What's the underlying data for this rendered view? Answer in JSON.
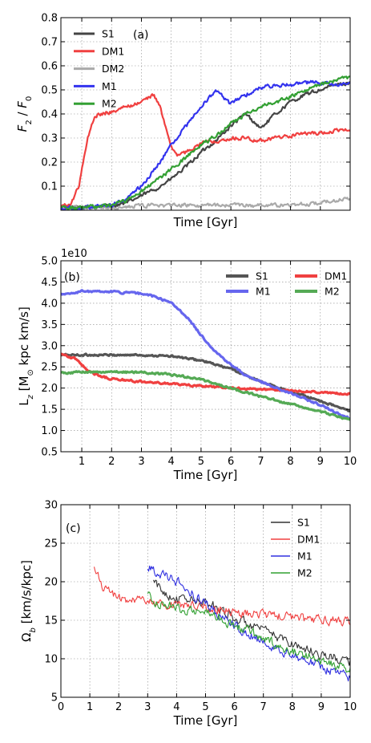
{
  "chart_data": [
    {
      "type": "line",
      "panel_label": "(a)",
      "xlabel": "Time [Gyr]",
      "ylabel": "F_2 / F_0",
      "ylabel_parts": {
        "base": "F",
        "sub1": "2",
        "sep": " / ",
        "base2": "F",
        "sub2": "0"
      },
      "xlim": [
        0.3,
        10
      ],
      "ylim": [
        0,
        0.8
      ],
      "x_ticks_labeled": false,
      "y_ticks": [
        0.1,
        0.2,
        0.3,
        0.4,
        0.5,
        0.6,
        0.7,
        0.8
      ],
      "y_tick_labels": [
        "0.1",
        "0.2",
        "0.3",
        "0.4",
        "0.5",
        "0.6",
        "0.7",
        "0.8"
      ],
      "grid": true,
      "legend_position": "top-left",
      "legend_columns": 1,
      "noise": 0.007,
      "series": [
        {
          "name": "S1",
          "color": "#444444",
          "x": [
            0.3,
            1.0,
            2.0,
            2.5,
            3.0,
            3.5,
            4.0,
            4.5,
            5.0,
            5.5,
            6.0,
            6.5,
            7.0,
            7.5,
            8.0,
            8.5,
            9.0,
            9.5,
            10.0
          ],
          "y": [
            0.01,
            0.01,
            0.02,
            0.03,
            0.06,
            0.09,
            0.13,
            0.18,
            0.24,
            0.29,
            0.35,
            0.4,
            0.34,
            0.4,
            0.45,
            0.48,
            0.5,
            0.52,
            0.53
          ]
        },
        {
          "name": "DM1",
          "color": "#f04040",
          "x": [
            0.3,
            0.6,
            0.9,
            1.2,
            1.4,
            1.6,
            2.0,
            2.5,
            3.0,
            3.4,
            3.6,
            3.8,
            4.0,
            4.2,
            4.5,
            5.0,
            5.5,
            6.0,
            6.5,
            7.0,
            7.5,
            8.0,
            8.5,
            9.0,
            9.5,
            10.0
          ],
          "y": [
            0.02,
            0.02,
            0.1,
            0.3,
            0.38,
            0.4,
            0.41,
            0.43,
            0.45,
            0.48,
            0.44,
            0.35,
            0.26,
            0.23,
            0.24,
            0.28,
            0.29,
            0.3,
            0.3,
            0.29,
            0.3,
            0.31,
            0.32,
            0.32,
            0.33,
            0.33
          ]
        },
        {
          "name": "DM2",
          "color": "#aaaaaa",
          "x": [
            0.3,
            2.0,
            3.0,
            4.0,
            5.0,
            6.0,
            7.0,
            8.0,
            9.0,
            9.5,
            10.0
          ],
          "y": [
            0.01,
            0.01,
            0.02,
            0.02,
            0.02,
            0.02,
            0.02,
            0.02,
            0.03,
            0.04,
            0.05
          ]
        },
        {
          "name": "M1",
          "color": "#3333ee",
          "x": [
            0.3,
            1.0,
            2.0,
            2.5,
            3.0,
            3.5,
            4.0,
            4.5,
            5.0,
            5.5,
            5.8,
            6.0,
            6.5,
            7.0,
            7.5,
            8.0,
            8.5,
            9.0,
            9.5,
            10.0
          ],
          "y": [
            0.01,
            0.01,
            0.02,
            0.05,
            0.1,
            0.18,
            0.27,
            0.35,
            0.43,
            0.5,
            0.46,
            0.44,
            0.48,
            0.51,
            0.52,
            0.52,
            0.53,
            0.53,
            0.52,
            0.52
          ]
        },
        {
          "name": "M2",
          "color": "#33a033",
          "x": [
            0.3,
            1.0,
            2.0,
            2.5,
            3.0,
            3.5,
            4.0,
            4.5,
            5.0,
            5.5,
            6.0,
            6.5,
            7.0,
            7.5,
            8.0,
            8.5,
            9.0,
            9.5,
            10.0
          ],
          "y": [
            0.01,
            0.01,
            0.02,
            0.04,
            0.08,
            0.12,
            0.17,
            0.22,
            0.27,
            0.31,
            0.36,
            0.4,
            0.43,
            0.45,
            0.47,
            0.5,
            0.52,
            0.54,
            0.55
          ]
        }
      ]
    },
    {
      "type": "line",
      "panel_label": "(b)",
      "xlabel": "Time [Gyr]",
      "ylabel": "L_z [M⊙ kpc km/s]",
      "ylabel_parts": {
        "base": "L",
        "sub1": "z",
        "rest": " [M",
        "sun": "⊙",
        "rest2": " kpc km/s]"
      },
      "offset_text": "1e10",
      "xlim": [
        0.3,
        10
      ],
      "ylim": [
        0.5,
        5.0
      ],
      "x_ticks": [
        1,
        2,
        3,
        4,
        5,
        6,
        7,
        8,
        9,
        10
      ],
      "x_tick_labels": [
        "1",
        "2",
        "3",
        "4",
        "5",
        "6",
        "7",
        "8",
        "9",
        "10"
      ],
      "y_ticks": [
        0.5,
        1.0,
        1.5,
        2.0,
        2.5,
        3.0,
        3.5,
        4.0,
        4.5,
        5.0
      ],
      "y_tick_labels": [
        "0.5",
        "1.0",
        "1.5",
        "2.0",
        "2.5",
        "3.0",
        "3.5",
        "4.0",
        "4.5",
        "5.0"
      ],
      "grid": true,
      "legend_position": "top-right",
      "legend_columns": 2,
      "noise": 0.02,
      "series": [
        {
          "name": "S1",
          "color": "#555555",
          "x": [
            0.3,
            1,
            2,
            3,
            4,
            5,
            6,
            7,
            8,
            9,
            10
          ],
          "y": [
            2.78,
            2.78,
            2.78,
            2.78,
            2.75,
            2.65,
            2.45,
            2.15,
            1.92,
            1.7,
            1.45
          ]
        },
        {
          "name": "DM1",
          "color": "#f04040",
          "x": [
            0.3,
            0.5,
            0.8,
            1.0,
            1.3,
            1.6,
            2.0,
            3,
            4,
            5,
            6,
            7,
            8,
            9,
            10
          ],
          "y": [
            2.82,
            2.75,
            2.68,
            2.55,
            2.38,
            2.28,
            2.22,
            2.15,
            2.1,
            2.05,
            2.0,
            1.97,
            1.94,
            1.9,
            1.85
          ]
        },
        {
          "name": "M1",
          "color": "#6666ee",
          "x": [
            0.3,
            1,
            2,
            3,
            3.5,
            4,
            4.5,
            5,
            5.5,
            6,
            6.5,
            7,
            7.5,
            8,
            9,
            10
          ],
          "y": [
            4.2,
            4.28,
            4.27,
            4.22,
            4.15,
            4.0,
            3.7,
            3.25,
            2.85,
            2.55,
            2.3,
            2.15,
            2.0,
            1.88,
            1.6,
            1.28
          ]
        },
        {
          "name": "M2",
          "color": "#55aa55",
          "x": [
            0.3,
            1,
            2,
            3,
            4,
            5,
            6,
            7,
            8,
            9,
            10
          ],
          "y": [
            2.35,
            2.38,
            2.38,
            2.37,
            2.32,
            2.2,
            2.0,
            1.8,
            1.62,
            1.45,
            1.25
          ]
        }
      ]
    },
    {
      "type": "line",
      "panel_label": "(c)",
      "xlabel": "Time [Gyr]",
      "ylabel": "Ω_b [km/s/kpc]",
      "ylabel_parts": {
        "base": "Ω",
        "sub1": "b",
        "rest": " [km/s/kpc]"
      },
      "xlim": [
        0,
        10
      ],
      "ylim": [
        5,
        30
      ],
      "x_ticks": [
        0,
        1,
        2,
        3,
        4,
        5,
        6,
        7,
        8,
        9,
        10
      ],
      "x_tick_labels": [
        "0",
        "1",
        "2",
        "3",
        "4",
        "5",
        "6",
        "7",
        "8",
        "9",
        "10"
      ],
      "y_ticks": [
        5,
        10,
        15,
        20,
        25,
        30
      ],
      "y_tick_labels": [
        "5",
        "10",
        "15",
        "20",
        "25",
        "30"
      ],
      "grid": true,
      "legend_position": "top-right",
      "legend_columns": 1,
      "noise": 0.55,
      "series": [
        {
          "name": "S1",
          "color": "#333333",
          "x": [
            3.2,
            3.5,
            4,
            4.5,
            5,
            5.5,
            6,
            6.5,
            7,
            7.5,
            8,
            8.5,
            9,
            9.5,
            10
          ],
          "y": [
            20.0,
            18.8,
            17.8,
            17.6,
            17.2,
            16.5,
            15.3,
            14.4,
            13.6,
            12.8,
            12.0,
            11.2,
            10.6,
            10.0,
            9.5
          ]
        },
        {
          "name": "DM1",
          "color": "#f04040",
          "x": [
            1.15,
            1.3,
            1.5,
            2,
            2.5,
            3,
            3.5,
            4,
            4.5,
            5,
            5.5,
            6,
            6.5,
            7,
            7.5,
            8,
            8.5,
            9,
            9.5,
            10
          ],
          "y": [
            22.0,
            20.5,
            19.0,
            18.0,
            17.6,
            17.2,
            17.0,
            16.9,
            16.8,
            16.6,
            16.4,
            16.1,
            15.9,
            15.7,
            15.5,
            15.3,
            15.1,
            15.0,
            14.9,
            14.8
          ]
        },
        {
          "name": "M1",
          "color": "#3030e0",
          "x": [
            3.0,
            3.5,
            4,
            4.5,
            5,
            5.5,
            6,
            6.5,
            7,
            7.5,
            8,
            8.5,
            9,
            9.5,
            10
          ],
          "y": [
            22.0,
            21.0,
            20.0,
            18.5,
            17.0,
            15.6,
            14.3,
            13.2,
            12.2,
            11.2,
            10.5,
            9.8,
            9.0,
            8.2,
            7.5
          ]
        },
        {
          "name": "M2",
          "color": "#30a030",
          "x": [
            3.0,
            3.5,
            4,
            4.5,
            5,
            5.5,
            6,
            6.5,
            7,
            7.5,
            8,
            8.5,
            9,
            9.5,
            10
          ],
          "y": [
            18.0,
            17.0,
            16.5,
            16.4,
            16.0,
            15.3,
            14.4,
            13.5,
            12.6,
            11.8,
            11.0,
            10.3,
            9.6,
            9.0,
            8.5
          ]
        }
      ]
    }
  ]
}
